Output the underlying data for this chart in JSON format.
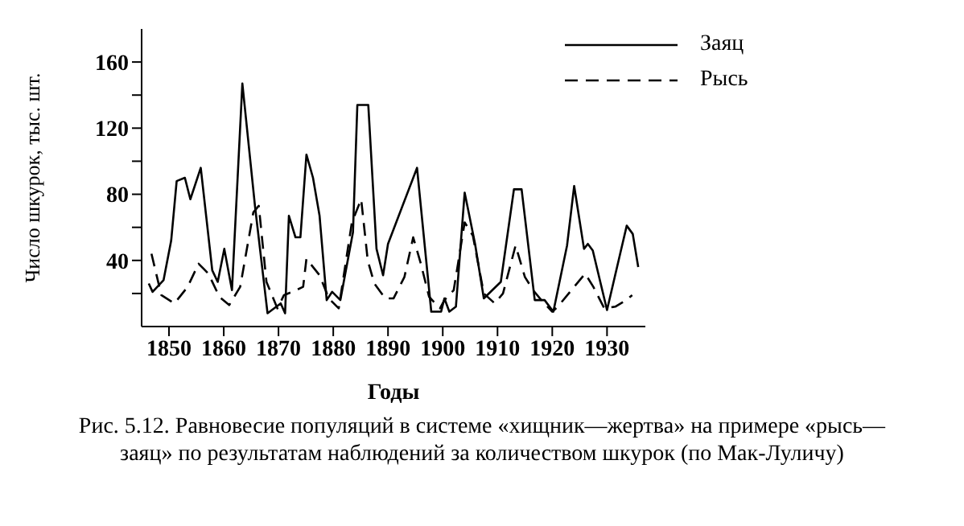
{
  "chart_data": {
    "type": "line",
    "xlabel": "Годы",
    "ylabel": "Число шкурок, тыс. шт.",
    "xlim": [
      1845,
      1937
    ],
    "xticks": [
      1850,
      1860,
      1870,
      1880,
      1890,
      1900,
      1910,
      1920,
      1930
    ],
    "ylim": [
      0,
      180
    ],
    "yticks": [
      {
        "value": 20,
        "label": null
      },
      40,
      {
        "value": 60,
        "label": null
      },
      80,
      {
        "value": 100,
        "label": null
      },
      120,
      {
        "value": 140,
        "label": null
      },
      160
    ],
    "grid": false,
    "legend": "top right",
    "marker": "none",
    "series": [
      {
        "name": "Заяц",
        "color": "#000000",
        "line_style": "solid",
        "x": [
          1846.3,
          1847,
          1849,
          1850.4,
          1851.4,
          1852.9,
          1853.9,
          1855.8,
          1857.9,
          1858.9,
          1860.1,
          1861.5,
          1863.4,
          1865.7,
          1868,
          1870.4,
          1871.2,
          1871.9,
          1873.1,
          1874,
          1875.1,
          1876.3,
          1877.5,
          1878.8,
          1879.8,
          1881.3,
          1883.6,
          1884.4,
          1886.4,
          1887.9,
          1889.1,
          1890,
          1895.3,
          1897.9,
          1899.7,
          1900.3,
          1901.2,
          1902.4,
          1904,
          1905.9,
          1907.5,
          1910.6,
          1913,
          1914.4,
          1916.8,
          1918.6,
          1920.2,
          1922.7,
          1924,
          1925.8,
          1926.5,
          1927.4,
          1930,
          1932.4,
          1933.6,
          1934.7,
          1935.7
        ],
        "values": [
          26,
          21,
          28,
          52,
          88,
          90,
          77,
          96,
          34,
          27,
          47,
          22,
          147,
          73,
          8,
          14,
          8,
          67,
          54,
          54,
          104,
          90,
          67,
          16,
          21,
          16,
          57,
          134,
          134,
          47,
          31,
          50,
          96,
          9,
          9,
          17,
          9,
          12,
          81,
          50,
          17,
          27,
          83,
          83,
          16,
          16,
          9,
          49,
          85,
          47,
          50,
          46,
          10,
          44,
          61,
          56,
          36
        ]
      },
      {
        "name": "Рысь",
        "color": "#000000",
        "line_style": "dashed",
        "x": [
          1846.8,
          1848.6,
          1851,
          1853.4,
          1855.4,
          1857.2,
          1859.2,
          1861,
          1863,
          1865.4,
          1866.4,
          1867.8,
          1869.8,
          1871,
          1872.5,
          1874.5,
          1875.1,
          1877.5,
          1879.2,
          1881,
          1883.4,
          1885.1,
          1886.3,
          1887.5,
          1889.5,
          1891,
          1893,
          1894.6,
          1896,
          1897.5,
          1899.5,
          1900.3,
          1902,
          1904,
          1905.5,
          1907.5,
          1909.5,
          1911,
          1913.3,
          1915,
          1916.5,
          1918,
          1920,
          1921,
          1923,
          1926,
          1927.5,
          1929.5,
          1931.5,
          1933.5,
          1934.6
        ],
        "values": [
          44,
          19,
          14,
          24,
          38,
          32,
          18,
          13,
          24,
          69,
          73,
          27,
          11,
          19,
          21,
          24,
          41,
          31,
          17,
          11,
          63,
          77,
          40,
          26,
          17,
          17,
          30,
          54,
          38,
          18,
          11,
          16,
          22,
          63,
          55,
          20,
          14,
          20,
          49,
          30,
          22,
          16,
          9,
          12,
          20,
          32,
          24,
          11,
          12,
          16,
          19
        ]
      }
    ],
    "annotations": [
      "Рис. 5.12. Равновесие популяций в системе «хищник—жертва» на примере «рысь—заяц» по результатам наблюдений за количеством шкурок (по Мак-Луличу)"
    ]
  }
}
